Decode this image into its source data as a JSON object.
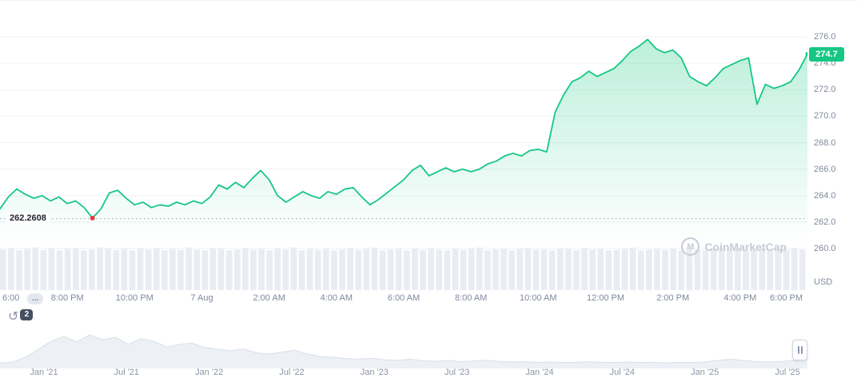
{
  "ui": {
    "watermark": "CoinMarketCap",
    "history_count": "2",
    "truncation_chip": "..."
  },
  "icons": {
    "history-icon": "↺",
    "logo-glyph": "M"
  },
  "chart_data": {
    "type": "line",
    "title": "",
    "y_axis_unit": "USD",
    "ylim": [
      259.0,
      277.0
    ],
    "grid": "horizontal",
    "line_color": "#16c784",
    "area_color": "#16c784",
    "current_value": "274.7",
    "current_badge_color": "#16c784",
    "low_marker": {
      "value": 262.2608,
      "label": "262.2608",
      "index": 11,
      "color": "#ea3943"
    },
    "y_tick_labels": [
      "276.0",
      "274.0",
      "272.0",
      "270.0",
      "268.0",
      "266.0",
      "264.0",
      "262.0",
      "260.0"
    ],
    "x_tick_labels": [
      "6:00",
      "8:00 PM",
      "10:00 PM",
      "7 Aug",
      "2:00 AM",
      "4:00 AM",
      "6:00 AM",
      "8:00 AM",
      "10:00 AM",
      "12:00 PM",
      "2:00 PM",
      "4:00 PM",
      "6:00 PM"
    ],
    "series": [
      {
        "name": "price_usd_24h",
        "values": [
          263.0,
          263.9,
          264.5,
          264.1,
          263.8,
          264.0,
          263.6,
          263.9,
          263.4,
          263.6,
          263.1,
          262.3,
          263.0,
          264.2,
          264.4,
          263.8,
          263.3,
          263.5,
          263.1,
          263.3,
          263.2,
          263.5,
          263.3,
          263.6,
          263.4,
          263.9,
          264.8,
          264.5,
          265.0,
          264.6,
          265.3,
          265.9,
          265.2,
          264.0,
          263.5,
          263.9,
          264.3,
          264.0,
          263.8,
          264.3,
          264.1,
          264.5,
          264.6,
          263.9,
          263.3,
          263.7,
          264.2,
          264.7,
          265.2,
          265.9,
          266.3,
          265.5,
          265.8,
          266.1,
          265.8,
          266.0,
          265.8,
          266.0,
          266.4,
          266.6,
          267.0,
          267.2,
          267.0,
          267.4,
          267.5,
          267.3,
          270.3,
          271.6,
          272.6,
          272.9,
          273.4,
          273.0,
          273.3,
          273.6,
          274.2,
          274.9,
          275.3,
          275.8,
          275.1,
          274.8,
          275.0,
          274.4,
          273.0,
          272.6,
          272.3,
          272.9,
          273.6,
          273.9,
          274.2,
          274.4,
          270.9,
          272.4,
          272.1,
          272.3,
          272.6,
          273.5,
          274.7
        ]
      }
    ],
    "volume_profile": [
      0.82,
      0.85,
      0.8,
      0.83,
      0.86,
      0.81,
      0.84,
      0.8,
      0.83,
      0.85,
      0.8,
      0.82,
      0.86,
      0.84,
      0.81,
      0.83,
      0.8,
      0.85,
      0.82,
      0.84,
      0.8,
      0.83,
      0.81,
      0.86,
      0.82,
      0.8,
      0.84,
      0.83,
      0.8,
      0.82,
      0.85,
      0.81,
      0.83,
      0.8,
      0.84,
      0.82,
      0.86,
      0.8,
      0.83,
      0.81,
      0.84,
      0.8,
      0.82,
      0.85,
      0.81,
      0.83,
      0.86,
      0.8,
      0.82,
      0.84,
      0.8,
      0.83,
      0.81,
      0.85,
      0.82,
      0.8,
      0.84,
      0.81,
      0.83,
      0.86,
      0.8,
      0.82,
      0.84,
      0.8,
      0.83,
      0.85,
      0.81,
      0.82,
      0.8,
      0.84,
      0.83,
      0.8,
      0.85,
      0.82,
      0.84,
      0.8,
      0.81,
      0.83,
      0.86,
      0.8,
      0.82,
      0.84,
      0.81,
      0.83,
      0.8,
      0.85,
      0.82,
      0.8,
      0.84,
      0.83,
      0.81,
      0.85,
      0.8,
      0.82,
      0.84,
      0.8,
      0.83,
      0.81,
      0.85,
      0.82
    ],
    "mini_chart": {
      "x_tick_labels": [
        "Jan '21",
        "Jul '21",
        "Jan '22",
        "Jul '22",
        "Jan '23",
        "Jul '23",
        "Jan '24",
        "Jul '24",
        "Jan '25",
        "Jul '25"
      ],
      "values": [
        0.12,
        0.15,
        0.3,
        0.55,
        0.8,
        0.95,
        0.78,
        1.0,
        0.85,
        0.92,
        0.7,
        0.88,
        0.8,
        0.62,
        0.7,
        0.74,
        0.6,
        0.55,
        0.5,
        0.56,
        0.44,
        0.4,
        0.46,
        0.52,
        0.4,
        0.32,
        0.3,
        0.26,
        0.24,
        0.27,
        0.22,
        0.2,
        0.24,
        0.19,
        0.17,
        0.2,
        0.16,
        0.18,
        0.21,
        0.17,
        0.15,
        0.16,
        0.14,
        0.15,
        0.13,
        0.14,
        0.16,
        0.14,
        0.13,
        0.15,
        0.13,
        0.14,
        0.12,
        0.14,
        0.13,
        0.15,
        0.2,
        0.24,
        0.2,
        0.16,
        0.15,
        0.17,
        0.2,
        0.26
      ]
    }
  }
}
